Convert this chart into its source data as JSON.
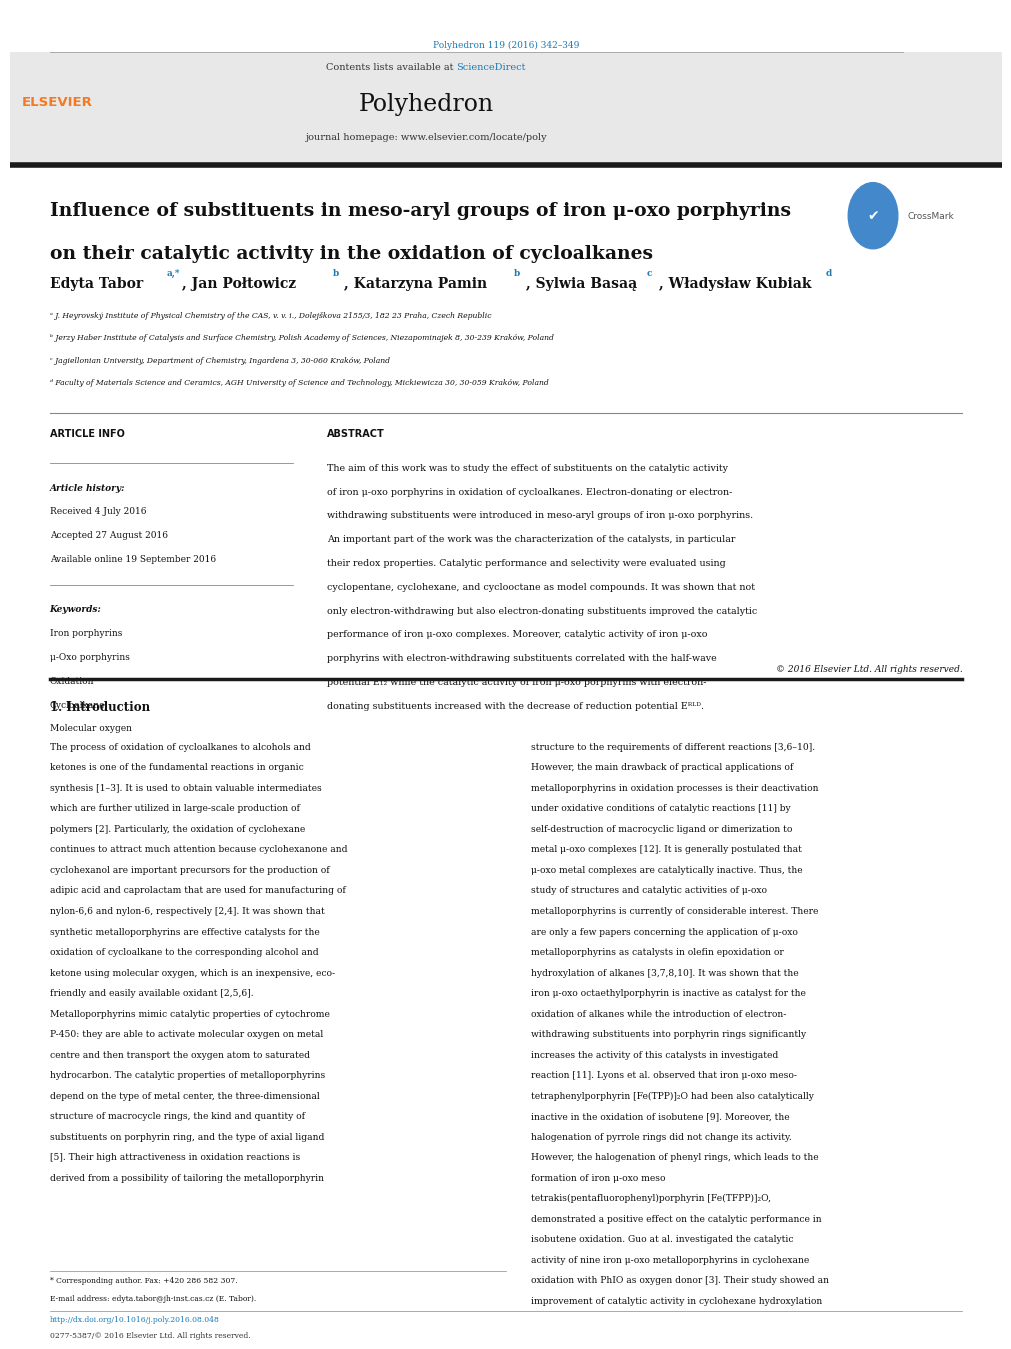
{
  "page_width": 9.92,
  "page_height": 13.23,
  "dpi": 100,
  "bg_color": "#ffffff",
  "journal_ref": "Polyhedron 119 (2016) 342–349",
  "journal_ref_color": "#1a7ab5",
  "journal_name": "Polyhedron",
  "contents_text": "Contents lists available at ",
  "sciencedirect_text": "ScienceDirect",
  "sciencedirect_color": "#1a7ab5",
  "homepage_text": "journal homepage: www.elsevier.com/locate/poly",
  "article_title_line1": "Influence of substituents in meso-aryl groups of iron μ-oxo porphyrins",
  "article_title_line2": "on their catalytic activity in the oxidation of cycloalkanes",
  "affil_a": "ᵃ J. Heyrovský Institute of Physical Chemistry of the CAS, v. v. i., Dolejškova 2155/3, 182 23 Praha, Czech Republic",
  "affil_b": "ᵇ Jerzy Haber Institute of Catalysis and Surface Chemistry, Polish Academy of Sciences, Niezapominajek 8, 30-239 Kraków, Poland",
  "affil_c": "ᶜ Jagiellonian University, Department of Chemistry, Ingardena 3, 30-060 Kraków, Poland",
  "affil_d": "ᵈ Faculty of Materials Science and Ceramics, AGH University of Science and Technology, Mickiewicza 30, 30-059 Kraków, Poland",
  "article_info_header": "ARTICLE INFO",
  "abstract_header": "ABSTRACT",
  "article_history_label": "Article history:",
  "received_text": "Received 4 July 2016",
  "accepted_text": "Accepted 27 August 2016",
  "available_text": "Available online 19 September 2016",
  "keywords_label": "Keywords:",
  "keywords": [
    "Iron porphyrins",
    "μ-Oxo porphyrins",
    "Oxidation",
    "Cycloalkane",
    "Molecular oxygen"
  ],
  "abstract_text": "The aim of this work was to study the effect of substituents on the catalytic activity of iron μ-oxo porphyrins in oxidation of cycloalkanes. Electron-donating or electron-withdrawing substituents were introduced in meso-aryl groups of iron μ-oxo porphyrins. An important part of the work was the characterization of the catalysts, in particular their redox properties. Catalytic performance and selectivity were evaluated using cyclopentane, cyclohexane, and cyclooctane as model compounds. It was shown that not only electron-withdrawing but also electron-donating substituents improved the catalytic performance of iron μ-oxo complexes. Moreover, catalytic activity of iron μ-oxo porphyrins with electron-withdrawing substituents correlated with the half-wave potential E₁₂ while the catalytic activity of iron μ-oxo porphyrins with electron-donating substituents increased with the decrease of reduction potential Eᴿᴸᴰ.",
  "copyright_text": "© 2016 Elsevier Ltd. All rights reserved.",
  "intro_header": "1. Introduction",
  "intro_col1": "The process of oxidation of cycloalkanes to alcohols and ketones is one of the fundamental reactions in organic synthesis [1–3]. It is used to obtain valuable intermediates which are further utilized in large-scale production of polymers [2]. Particularly, the oxidation of cyclohexane continues to attract much attention because cyclohexanone and cyclohexanol are important precursors for the production of adipic acid and caprolactam that are used for manufacturing of nylon-6,6 and nylon-6, respectively [2,4]. It was shown that synthetic metalloporphyrins are effective catalysts for the oxidation of cycloalkane to the corresponding alcohol and ketone using molecular oxygen, which is an inexpensive, eco-friendly and easily available oxidant [2,5,6]. Metalloporphyrins mimic catalytic properties of cytochrome P-450: they are able to activate molecular oxygen on metal centre and then transport the oxygen atom to saturated hydrocarbon. The catalytic properties of metalloporphyrins depend on the type of metal center, the three-dimensional structure of macrocycle rings, the kind and quantity of substituents on porphyrin ring, and the type of axial ligand [5]. Their high attractiveness in oxidation reactions is derived from a possibility of tailoring the metalloporphyrin",
  "intro_col2": "structure to the requirements of different reactions [3,6–10]. However, the main drawback of practical applications of metalloporphyrins in oxidation processes is their deactivation under oxidative conditions of catalytic reactions [11] by self-destruction of macrocyclic ligand or dimerization to metal μ-oxo complexes [12]. It is generally postulated that μ-oxo metal complexes are catalytically inactive. Thus, the study of structures and catalytic activities of μ-oxo metalloporphyrins is currently of considerable interest. There are only a few papers concerning the application of μ-oxo metalloporphyrins as catalysts in olefin epoxidation or hydroxylation of alkanes [3,7,8,10]. It was shown that the iron μ-oxo octaethylporphyrin is inactive as catalyst for the oxidation of alkanes while the introduction of electron-withdrawing substituents into porphyrin rings significantly increases the activity of this catalysts in investigated reaction [11]. Lyons et al. observed that iron μ-oxo meso-tetraphenylporphyrin [Fe(TPP)]₂O had been also catalytically inactive in the oxidation of isobutene [9]. Moreover, the halogenation of pyrrole rings did not change its activity. However, the halogenation of phenyl rings, which leads to the formation of iron μ-oxo meso tetrakis(pentafluorophenyl)porphyrin [Fe(TFPP)]₂O, demonstrated a positive effect on the catalytic performance in isobutene oxidation. Guo at al. investigated the catalytic activity of nine iron μ-oxo metalloporphyrins in cyclohexane oxidation with PhIO as oxygen donor [3]. Their study showed an improvement of catalytic activity in cyclohexane hydroxylation",
  "doi_text": "http://dx.doi.org/10.1016/j.poly.2016.08.048",
  "doi_color": "#1a7ab5",
  "issn_text": "0277-5387/© 2016 Elsevier Ltd. All rights reserved.",
  "footnote_star": "* Corresponding author. Fax: +420 286 582 307.",
  "footnote_email": "E-mail address: edyta.tabor@jh-inst.cas.cz (E. Tabor).",
  "header_bg": "#e8e8e8",
  "black_bar_color": "#1a1a1a",
  "elsevier_color": "#f47920",
  "link_color": "#1a7ab5"
}
